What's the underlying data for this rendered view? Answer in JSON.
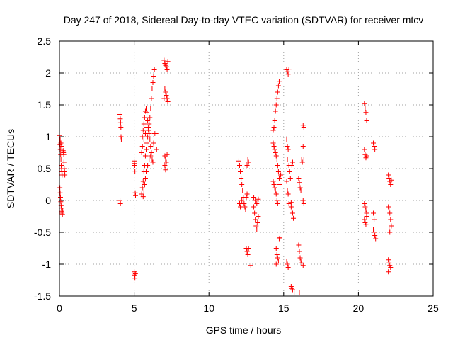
{
  "chart_data": {
    "type": "scatter",
    "title": "Day 247 of 2018, Sidereal Day-to-day VTEC variation (SDTVAR) for receiver mtcv",
    "xlabel": "GPS time / hours",
    "ylabel": "SDTVAR / TECUs",
    "xlim": [
      0,
      25
    ],
    "ylim": [
      -1.5,
      2.5
    ],
    "xticks": [
      "0",
      "5",
      "10",
      "15",
      "20",
      "25"
    ],
    "yticks": [
      "-1.5",
      "-1",
      "-0.5",
      "0",
      "0.5",
      "1",
      "1.5",
      "2",
      "2.5"
    ],
    "grid": true,
    "marker": "+",
    "color": "#ff0000",
    "series": [
      {
        "name": "SDTVAR",
        "points": [
          [
            0.0,
            1.02
          ],
          [
            0.02,
            0.95
          ],
          [
            0.04,
            0.88
          ],
          [
            0.06,
            0.8
          ],
          [
            0.08,
            0.72
          ],
          [
            0.1,
            0.65
          ],
          [
            0.12,
            0.55
          ],
          [
            0.14,
            0.5
          ],
          [
            0.16,
            0.45
          ],
          [
            0.18,
            0.4
          ],
          [
            0.03,
            0.2
          ],
          [
            0.05,
            0.12
          ],
          [
            0.07,
            0.05
          ],
          [
            0.09,
            -0.02
          ],
          [
            0.11,
            -0.08
          ],
          [
            0.13,
            -0.12
          ],
          [
            0.15,
            -0.17
          ],
          [
            0.17,
            -0.2
          ],
          [
            0.2,
            -0.22
          ],
          [
            0.22,
            -0.15
          ],
          [
            0.25,
            0.78
          ],
          [
            0.27,
            0.75
          ],
          [
            0.29,
            0.72
          ],
          [
            0.3,
            0.6
          ],
          [
            0.32,
            0.5
          ],
          [
            0.34,
            0.45
          ],
          [
            0.36,
            0.4
          ],
          [
            0.05,
            0.95
          ],
          [
            0.1,
            0.9
          ],
          [
            0.15,
            0.85
          ],
          [
            4.05,
            1.35
          ],
          [
            4.07,
            1.28
          ],
          [
            4.09,
            1.22
          ],
          [
            4.11,
            1.15
          ],
          [
            4.12,
            1.0
          ],
          [
            4.14,
            0.95
          ],
          [
            4.05,
            0.0
          ],
          [
            4.08,
            -0.05
          ],
          [
            5.0,
            0.62
          ],
          [
            5.02,
            0.58
          ],
          [
            5.04,
            0.55
          ],
          [
            5.05,
            0.46
          ],
          [
            5.07,
            0.12
          ],
          [
            5.09,
            0.08
          ],
          [
            5.0,
            -1.12
          ],
          [
            5.03,
            -1.17
          ],
          [
            5.05,
            -1.22
          ],
          [
            5.08,
            -1.15
          ],
          [
            5.5,
            0.1
          ],
          [
            5.55,
            0.2
          ],
          [
            5.6,
            0.3
          ],
          [
            5.65,
            0.45
          ],
          [
            5.7,
            0.55
          ],
          [
            5.75,
            0.7
          ],
          [
            5.8,
            0.8
          ],
          [
            5.85,
            0.9
          ],
          [
            5.9,
            1.0
          ],
          [
            5.95,
            1.1
          ],
          [
            6.0,
            1.2
          ],
          [
            6.05,
            1.3
          ],
          [
            6.1,
            1.45
          ],
          [
            6.15,
            1.6
          ],
          [
            6.2,
            1.75
          ],
          [
            6.25,
            1.85
          ],
          [
            6.3,
            1.95
          ],
          [
            6.35,
            2.05
          ],
          [
            5.55,
            1.0
          ],
          [
            5.6,
            1.1
          ],
          [
            5.65,
            1.2
          ],
          [
            5.7,
            1.3
          ],
          [
            5.75,
            1.4
          ],
          [
            5.8,
            1.45
          ],
          [
            5.85,
            1.38
          ],
          [
            5.9,
            1.25
          ],
          [
            5.95,
            1.15
          ],
          [
            6.0,
            1.05
          ],
          [
            6.05,
            0.95
          ],
          [
            6.1,
            0.85
          ],
          [
            6.15,
            0.75
          ],
          [
            6.2,
            0.65
          ],
          [
            6.25,
            0.6
          ],
          [
            6.3,
            0.9
          ],
          [
            6.35,
            1.05
          ],
          [
            6.45,
            1.05
          ],
          [
            6.5,
            0.8
          ],
          [
            5.6,
            0.06
          ],
          [
            5.65,
            0.15
          ],
          [
            5.7,
            0.25
          ],
          [
            5.75,
            0.35
          ],
          [
            5.8,
            0.45
          ],
          [
            5.9,
            0.55
          ],
          [
            6.0,
            0.65
          ],
          [
            6.1,
            0.7
          ],
          [
            5.5,
            0.75
          ],
          [
            5.55,
            0.85
          ],
          [
            5.65,
            0.95
          ],
          [
            5.75,
            1.05
          ],
          [
            5.85,
            1.15
          ],
          [
            7.0,
            2.2
          ],
          [
            7.05,
            2.15
          ],
          [
            7.1,
            2.12
          ],
          [
            7.15,
            2.1
          ],
          [
            7.2,
            2.05
          ],
          [
            7.25,
            2.18
          ],
          [
            7.05,
            1.75
          ],
          [
            7.1,
            1.7
          ],
          [
            7.15,
            1.65
          ],
          [
            7.2,
            1.6
          ],
          [
            7.25,
            1.55
          ],
          [
            7.0,
            1.6
          ],
          [
            7.05,
            0.7
          ],
          [
            7.1,
            0.65
          ],
          [
            7.15,
            0.6
          ],
          [
            7.2,
            0.72
          ],
          [
            7.05,
            0.55
          ],
          [
            7.1,
            0.48
          ],
          [
            12.0,
            0.62
          ],
          [
            12.05,
            0.55
          ],
          [
            12.1,
            0.45
          ],
          [
            12.15,
            0.35
          ],
          [
            12.2,
            0.25
          ],
          [
            12.25,
            0.15
          ],
          [
            12.3,
            0.05
          ],
          [
            12.05,
            -0.05
          ],
          [
            12.1,
            -0.1
          ],
          [
            12.2,
            0.0
          ],
          [
            12.35,
            -0.05
          ],
          [
            12.4,
            -0.1
          ],
          [
            12.45,
            -0.15
          ],
          [
            12.5,
            0.05
          ],
          [
            12.55,
            0.1
          ],
          [
            12.6,
            0.65
          ],
          [
            12.65,
            0.6
          ],
          [
            12.55,
            0.55
          ],
          [
            12.5,
            -0.75
          ],
          [
            12.55,
            -0.8
          ],
          [
            12.6,
            -0.85
          ],
          [
            12.65,
            -0.75
          ],
          [
            12.8,
            -1.02
          ],
          [
            13.0,
            -0.1
          ],
          [
            13.05,
            -0.2
          ],
          [
            13.1,
            -0.3
          ],
          [
            13.15,
            -0.4
          ],
          [
            13.2,
            -0.45
          ],
          [
            13.25,
            -0.35
          ],
          [
            13.3,
            -0.25
          ],
          [
            13.0,
            0.05
          ],
          [
            13.1,
            0.0
          ],
          [
            13.2,
            -0.05
          ],
          [
            13.3,
            0.02
          ],
          [
            14.3,
            1.1
          ],
          [
            14.35,
            1.15
          ],
          [
            14.4,
            1.25
          ],
          [
            14.45,
            1.4
          ],
          [
            14.5,
            1.5
          ],
          [
            14.55,
            1.6
          ],
          [
            14.6,
            1.7
          ],
          [
            14.65,
            1.8
          ],
          [
            14.7,
            1.87
          ],
          [
            14.3,
            0.9
          ],
          [
            14.35,
            0.85
          ],
          [
            14.4,
            0.8
          ],
          [
            14.45,
            0.75
          ],
          [
            14.5,
            0.7
          ],
          [
            14.55,
            0.65
          ],
          [
            14.6,
            0.55
          ],
          [
            14.65,
            0.45
          ],
          [
            14.7,
            0.35
          ],
          [
            14.75,
            0.25
          ],
          [
            14.3,
            0.3
          ],
          [
            14.35,
            0.25
          ],
          [
            14.4,
            0.2
          ],
          [
            14.45,
            0.15
          ],
          [
            14.5,
            0.1
          ],
          [
            14.55,
            0.0
          ],
          [
            14.6,
            -0.05
          ],
          [
            14.5,
            -0.75
          ],
          [
            14.55,
            -0.85
          ],
          [
            14.6,
            -0.9
          ],
          [
            14.65,
            -0.95
          ],
          [
            14.7,
            -0.6
          ],
          [
            14.75,
            -0.58
          ],
          [
            14.5,
            -1.0
          ],
          [
            14.8,
            0.4
          ],
          [
            15.2,
            2.05
          ],
          [
            15.25,
            2.02
          ],
          [
            15.3,
            1.98
          ],
          [
            15.35,
            2.06
          ],
          [
            15.2,
            0.95
          ],
          [
            15.25,
            0.85
          ],
          [
            15.3,
            0.8
          ],
          [
            15.25,
            0.65
          ],
          [
            15.35,
            0.55
          ],
          [
            15.4,
            0.45
          ],
          [
            15.45,
            0.35
          ],
          [
            15.2,
            0.3
          ],
          [
            15.25,
            0.15
          ],
          [
            15.3,
            0.1
          ],
          [
            15.35,
            -0.05
          ],
          [
            15.5,
            -0.1
          ],
          [
            15.55,
            -0.15
          ],
          [
            15.6,
            -0.2
          ],
          [
            15.65,
            -0.28
          ],
          [
            15.5,
            -0.03
          ],
          [
            15.2,
            -0.95
          ],
          [
            15.25,
            -1.0
          ],
          [
            15.3,
            -1.05
          ],
          [
            15.5,
            -1.35
          ],
          [
            15.55,
            -1.38
          ],
          [
            15.6,
            -1.4
          ],
          [
            15.7,
            -1.45
          ],
          [
            15.55,
            0.55
          ],
          [
            15.6,
            0.6
          ],
          [
            16.0,
            0.35
          ],
          [
            16.05,
            0.28
          ],
          [
            16.1,
            0.2
          ],
          [
            16.15,
            0.15
          ],
          [
            16.0,
            -0.7
          ],
          [
            16.05,
            -0.8
          ],
          [
            16.1,
            -0.9
          ],
          [
            16.15,
            -0.95
          ],
          [
            16.2,
            -0.98
          ],
          [
            16.3,
            -1.02
          ],
          [
            16.2,
            0.65
          ],
          [
            16.25,
            0.6
          ],
          [
            16.3,
            0.85
          ],
          [
            16.35,
            0.65
          ],
          [
            16.3,
            1.18
          ],
          [
            16.35,
            1.15
          ],
          [
            16.3,
            0.0
          ],
          [
            16.35,
            -0.05
          ],
          [
            16.05,
            -1.45
          ],
          [
            20.4,
            1.52
          ],
          [
            20.45,
            1.45
          ],
          [
            20.5,
            1.38
          ],
          [
            20.55,
            1.25
          ],
          [
            20.4,
            0.8
          ],
          [
            20.45,
            0.72
          ],
          [
            20.5,
            0.67
          ],
          [
            20.55,
            0.7
          ],
          [
            20.4,
            -0.05
          ],
          [
            20.45,
            -0.1
          ],
          [
            20.5,
            -0.15
          ],
          [
            20.55,
            -0.2
          ],
          [
            20.4,
            -0.3
          ],
          [
            20.45,
            -0.35
          ],
          [
            20.5,
            -0.38
          ],
          [
            20.55,
            -0.25
          ],
          [
            21.0,
            0.9
          ],
          [
            21.05,
            0.85
          ],
          [
            21.1,
            0.8
          ],
          [
            21.0,
            -0.45
          ],
          [
            21.05,
            -0.5
          ],
          [
            21.1,
            -0.55
          ],
          [
            21.15,
            -0.6
          ],
          [
            21.0,
            -0.2
          ],
          [
            21.05,
            -0.3
          ],
          [
            22.0,
            0.4
          ],
          [
            22.05,
            0.35
          ],
          [
            22.1,
            0.3
          ],
          [
            22.15,
            0.25
          ],
          [
            22.2,
            0.32
          ],
          [
            22.0,
            -0.1
          ],
          [
            22.05,
            -0.15
          ],
          [
            22.1,
            -0.2
          ],
          [
            22.15,
            -0.3
          ],
          [
            22.2,
            -0.4
          ],
          [
            22.05,
            -0.45
          ],
          [
            22.1,
            -0.5
          ],
          [
            22.0,
            -0.93
          ],
          [
            22.05,
            -0.98
          ],
          [
            22.1,
            -1.02
          ],
          [
            22.15,
            -1.05
          ],
          [
            22.0,
            -1.12
          ]
        ]
      }
    ]
  }
}
